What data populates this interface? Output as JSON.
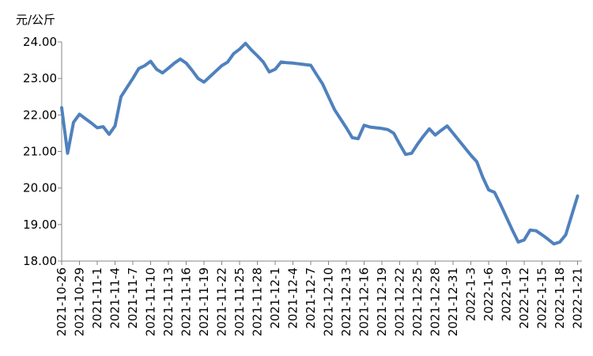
{
  "chart_data": {
    "type": "line",
    "y_label": "元/公斤",
    "categories": [
      "2021-10-26",
      null,
      null,
      "2021-10-29",
      null,
      null,
      "2021-11-1",
      null,
      null,
      "2021-11-4",
      null,
      null,
      "2021-11-7",
      null,
      null,
      "2021-11-10",
      null,
      null,
      "2021-11-13",
      null,
      null,
      "2021-11-16",
      null,
      null,
      "2021-11-19",
      null,
      null,
      "2021-11-22",
      null,
      null,
      "2021-11-25",
      null,
      null,
      "2021-11-28",
      null,
      null,
      "2021-12-1",
      null,
      null,
      "2021-12-4",
      null,
      null,
      "2021-12-7",
      null,
      null,
      "2021-12-10",
      null,
      null,
      "2021-12-13",
      null,
      null,
      "2021-12-16",
      null,
      null,
      "2021-12-19",
      null,
      null,
      "2021-12-22",
      null,
      null,
      "2021-12-25",
      null,
      null,
      "2021-12-28",
      null,
      null,
      "2021-12-31",
      null,
      null,
      "2022-1-3",
      null,
      null,
      "2022-1-6",
      null,
      null,
      "2022-1-9",
      null,
      null,
      "2022-1-12",
      null,
      null,
      "2022-1-15",
      null,
      null,
      "2022-1-18",
      null,
      null,
      "2022-1-21"
    ],
    "values": [
      22.2,
      20.95,
      21.8,
      22.02,
      21.9,
      21.78,
      21.65,
      21.68,
      21.47,
      21.7,
      22.5,
      22.75,
      23.0,
      23.27,
      23.35,
      23.47,
      23.25,
      23.15,
      23.28,
      23.42,
      23.53,
      23.42,
      23.22,
      23.0,
      22.9,
      23.05,
      23.2,
      23.35,
      23.45,
      23.68,
      23.8,
      23.96,
      23.78,
      23.62,
      23.45,
      23.18,
      23.25,
      23.45,
      23.43,
      23.42,
      23.4,
      23.38,
      23.36,
      23.1,
      22.85,
      22.5,
      22.15,
      21.9,
      21.65,
      21.38,
      21.35,
      21.72,
      21.67,
      21.65,
      21.63,
      21.6,
      21.5,
      21.2,
      20.92,
      20.95,
      21.2,
      21.42,
      21.62,
      21.45,
      21.58,
      21.7,
      21.5,
      21.3,
      21.1,
      20.9,
      20.72,
      20.3,
      19.95,
      19.88,
      19.55,
      19.2,
      18.85,
      18.52,
      18.58,
      18.85,
      18.83,
      18.72,
      18.6,
      18.47,
      18.52,
      18.72,
      19.25,
      19.78
    ],
    "color": "#4f81bd",
    "ylim": [
      18,
      24
    ],
    "yticks": [
      {
        "value": 18,
        "label": "18.00"
      },
      {
        "value": 19,
        "label": "19.00"
      },
      {
        "value": 20,
        "label": "20.00"
      },
      {
        "value": 21,
        "label": "21.00"
      },
      {
        "value": 22,
        "label": "22.00"
      },
      {
        "value": 23,
        "label": "23.00"
      },
      {
        "value": 24,
        "label": "24.00"
      }
    ],
    "grid": false
  }
}
